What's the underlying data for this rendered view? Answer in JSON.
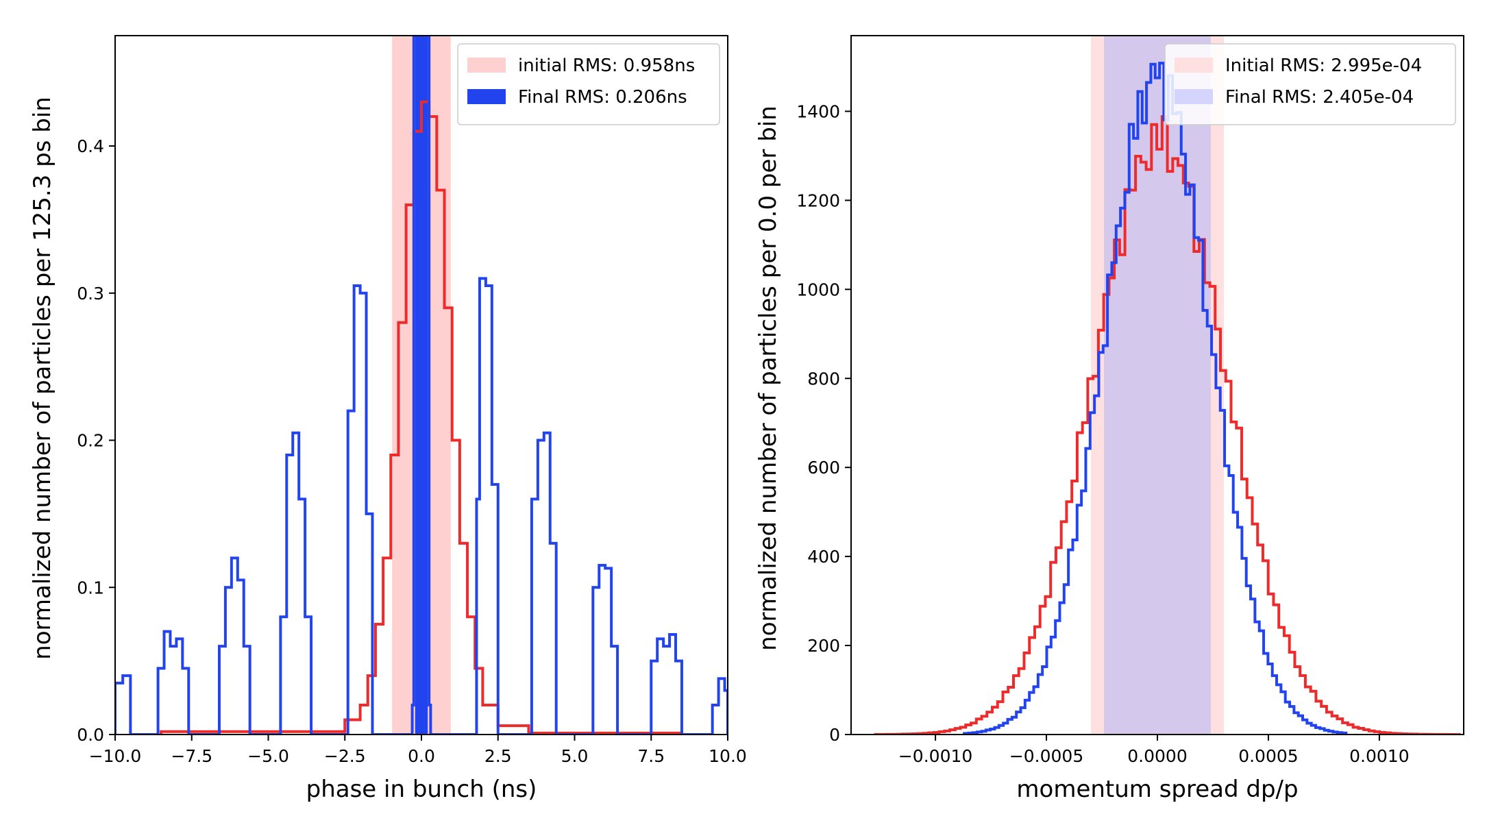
{
  "figure": {
    "background": "#ffffff"
  },
  "chart_data": [
    {
      "type": "histogram",
      "xlabel": "phase in bunch (ns)",
      "ylabel": "normalized number of particles per 125.3 ps bin",
      "xlim": [
        -10.0,
        10.0
      ],
      "ylim": [
        0.0,
        0.475
      ],
      "xticks": [
        -10.0,
        -7.5,
        -5.0,
        -2.5,
        0.0,
        2.5,
        5.0,
        7.5,
        10.0
      ],
      "xtick_labels": [
        "−10.0",
        "−7.5",
        "−5.0",
        "−2.5",
        "0.0",
        "2.5",
        "5.0",
        "7.5",
        "10.0"
      ],
      "yticks": [
        0.0,
        0.1,
        0.2,
        0.3,
        0.4
      ],
      "ytick_labels": [
        "0.0",
        "0.1",
        "0.2",
        "0.3",
        "0.4"
      ],
      "grid": false,
      "legend_position": "top-right",
      "bands": [
        {
          "name": "initial RMS: 0.958ns",
          "range": [
            -0.958,
            0.958
          ],
          "color": "#ffd0d0",
          "opacity": 1.0
        },
        {
          "name": "Final RMS: 0.206ns",
          "range": [
            -0.206,
            0.206
          ],
          "color": "#2244ee",
          "opacity": 1.0
        }
      ],
      "series": [
        {
          "color": "#ee2a2a",
          "bin_edges": [
            -8.5,
            -2.5,
            -2.0,
            -1.75,
            -1.5,
            -1.25,
            -1.0,
            -0.75,
            -0.5,
            -0.25,
            0.0,
            0.25,
            0.5,
            0.75,
            1.0,
            1.25,
            1.5,
            1.75,
            2.0,
            2.5,
            3.5,
            8.5
          ],
          "values": [
            0.002,
            0.01,
            0.02,
            0.04,
            0.075,
            0.12,
            0.19,
            0.28,
            0.36,
            0.41,
            0.43,
            0.42,
            0.37,
            0.29,
            0.2,
            0.13,
            0.08,
            0.045,
            0.02,
            0.006,
            0.001
          ]
        },
        {
          "color": "#2244ee",
          "bin_edges": [
            -10.0,
            -9.75,
            -9.5,
            -8.6,
            -8.4,
            -8.2,
            -8.0,
            -7.8,
            -7.6,
            -6.6,
            -6.4,
            -6.2,
            -6.0,
            -5.8,
            -5.6,
            -4.6,
            -4.4,
            -4.2,
            -4.0,
            -3.8,
            -3.6,
            -2.4,
            -2.2,
            -2.0,
            -1.8,
            -1.6,
            -0.3,
            -0.25,
            0.25,
            0.3,
            1.8,
            1.9,
            2.1,
            2.3,
            2.5,
            3.6,
            3.8,
            4.0,
            4.2,
            4.4,
            5.6,
            5.8,
            6.0,
            6.2,
            6.4,
            7.5,
            7.7,
            7.9,
            8.1,
            8.3,
            8.5,
            9.5,
            9.7,
            9.9,
            10.0
          ],
          "values": [
            0.035,
            0.04,
            0.0,
            0.045,
            0.07,
            0.06,
            0.065,
            0.045,
            0.0,
            0.06,
            0.1,
            0.12,
            0.105,
            0.06,
            0.0,
            0.08,
            0.19,
            0.205,
            0.16,
            0.08,
            0.0,
            0.22,
            0.305,
            0.3,
            0.15,
            0.0,
            0.02,
            0.475,
            0.02,
            0.0,
            0.16,
            0.31,
            0.305,
            0.17,
            0.0,
            0.16,
            0.2,
            0.205,
            0.13,
            0.0,
            0.1,
            0.115,
            0.113,
            0.06,
            0.0,
            0.05,
            0.065,
            0.06,
            0.068,
            0.05,
            0.0,
            0.02,
            0.038,
            0.03
          ]
        }
      ],
      "legend_entries": [
        {
          "label": "initial RMS: 0.958ns",
          "color": "#ffd0d0"
        },
        {
          "label": "Final RMS: 0.206ns",
          "color": "#2244ee"
        }
      ]
    },
    {
      "type": "histogram",
      "xlabel": "momentum spread dp/p",
      "ylabel": "normalized number of particles per 0.0 per bin",
      "xlim": [
        -0.00138,
        0.00138
      ],
      "ylim": [
        0,
        1570
      ],
      "xticks": [
        -0.001,
        -0.0005,
        0.0,
        0.0005,
        0.001
      ],
      "xtick_labels": [
        "−0.0010",
        "−0.0005",
        "0.0000",
        "0.0005",
        "0.0010"
      ],
      "yticks": [
        0,
        200,
        400,
        600,
        800,
        1000,
        1200,
        1400
      ],
      "ytick_labels": [
        "0",
        "200",
        "400",
        "600",
        "800",
        "1000",
        "1200",
        "1400"
      ],
      "grid": false,
      "legend_position": "top-right",
      "bands": [
        {
          "name": "Initial RMS: 2.995e-04",
          "range": [
            -0.0002995,
            0.0002995
          ],
          "color": "#ffe0e0",
          "opacity": 1.0
        },
        {
          "name": "Final RMS: 2.405e-04",
          "range": [
            -0.0002405,
            0.0002405
          ],
          "color": "#d4c8ec",
          "opacity": 1.0
        }
      ],
      "series": [
        {
          "color": "#ee2a2a",
          "x_range": [
            -0.00127,
            0.00136
          ],
          "bins": 110,
          "mu": 1e-05,
          "sigma": 0.0002995,
          "peak": 1335
        },
        {
          "color": "#2244ee",
          "x_range": [
            -0.00087,
            0.00085
          ],
          "bins": 88,
          "mu": 0.0,
          "sigma": 0.0002405,
          "peak": 1480
        }
      ],
      "legend_entries": [
        {
          "label": "Initial RMS: 2.995e-04",
          "color": "#ffe0e0"
        },
        {
          "label": "Final RMS: 2.405e-04",
          "color": "#d4d4ff"
        }
      ]
    }
  ]
}
